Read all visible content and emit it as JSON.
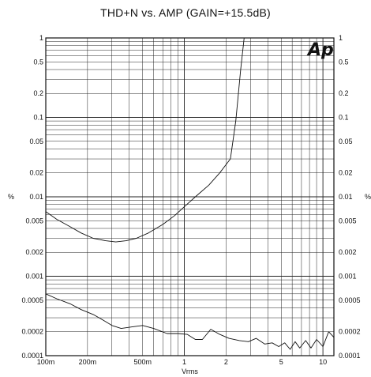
{
  "chart_data": {
    "type": "line",
    "title": "THD+N vs. AMP (GAIN=+15.5dB)",
    "xlabel": "Vrms",
    "ylabel_left": "%",
    "ylabel_right": "%",
    "logo": "Ap",
    "x_scale": "log",
    "y_scale": "log",
    "xlim": [
      0.1,
      12
    ],
    "ylim": [
      0.0001,
      1
    ],
    "grid": true,
    "x_ticks": [
      {
        "value": 0.1,
        "label": "100m"
      },
      {
        "value": 0.2,
        "label": "200m"
      },
      {
        "value": 0.5,
        "label": "500m"
      },
      {
        "value": 1,
        "label": "1"
      },
      {
        "value": 2,
        "label": "2"
      },
      {
        "value": 5,
        "label": "5"
      },
      {
        "value": 10,
        "label": "10"
      }
    ],
    "y_ticks": [
      {
        "value": 1,
        "label": "1"
      },
      {
        "value": 0.5,
        "label": "0.5"
      },
      {
        "value": 0.2,
        "label": "0.2"
      },
      {
        "value": 0.1,
        "label": "0.1"
      },
      {
        "value": 0.05,
        "label": "0.05"
      },
      {
        "value": 0.02,
        "label": "0.02"
      },
      {
        "value": 0.01,
        "label": "0.01"
      },
      {
        "value": 0.005,
        "label": "0.005"
      },
      {
        "value": 0.002,
        "label": "0.002"
      },
      {
        "value": 0.001,
        "label": "0.001"
      },
      {
        "value": 0.0005,
        "label": "0.0005"
      },
      {
        "value": 0.0002,
        "label": "0.0002"
      },
      {
        "value": 0.0001,
        "label": "0.0001"
      }
    ],
    "series": [
      {
        "x": [
          0.1,
          0.12,
          0.15,
          0.18,
          0.22,
          0.27,
          0.32,
          0.38,
          0.45,
          0.55,
          0.7,
          0.85,
          1.0,
          1.2,
          1.5,
          1.8,
          2.15,
          2.35,
          2.55,
          2.7
        ],
        "y": [
          0.0065,
          0.0052,
          0.0042,
          0.0035,
          0.003,
          0.0028,
          0.0027,
          0.0028,
          0.003,
          0.0035,
          0.0045,
          0.0058,
          0.0075,
          0.01,
          0.014,
          0.02,
          0.03,
          0.09,
          0.4,
          1.0
        ]
      },
      {
        "x": [
          0.1,
          0.12,
          0.15,
          0.18,
          0.22,
          0.26,
          0.3,
          0.35,
          0.42,
          0.5,
          0.6,
          0.75,
          0.9,
          1.05,
          1.2,
          1.35,
          1.55,
          1.8,
          2.1,
          2.5,
          2.9,
          3.3,
          3.8,
          4.3,
          4.8,
          5.3,
          5.8,
          6.3,
          6.8,
          7.5,
          8.2,
          9.0,
          10.0,
          11.0,
          12.0
        ],
        "y": [
          0.0006,
          0.00052,
          0.00045,
          0.00038,
          0.00033,
          0.00028,
          0.00024,
          0.00022,
          0.00023,
          0.00024,
          0.00022,
          0.00019,
          0.00019,
          0.000185,
          0.00016,
          0.00016,
          0.000215,
          0.000185,
          0.000165,
          0.000155,
          0.00015,
          0.000165,
          0.00014,
          0.000145,
          0.00013,
          0.000145,
          0.00012,
          0.00015,
          0.000125,
          0.000155,
          0.000125,
          0.00016,
          0.00013,
          0.0002,
          0.00017
        ]
      }
    ]
  }
}
